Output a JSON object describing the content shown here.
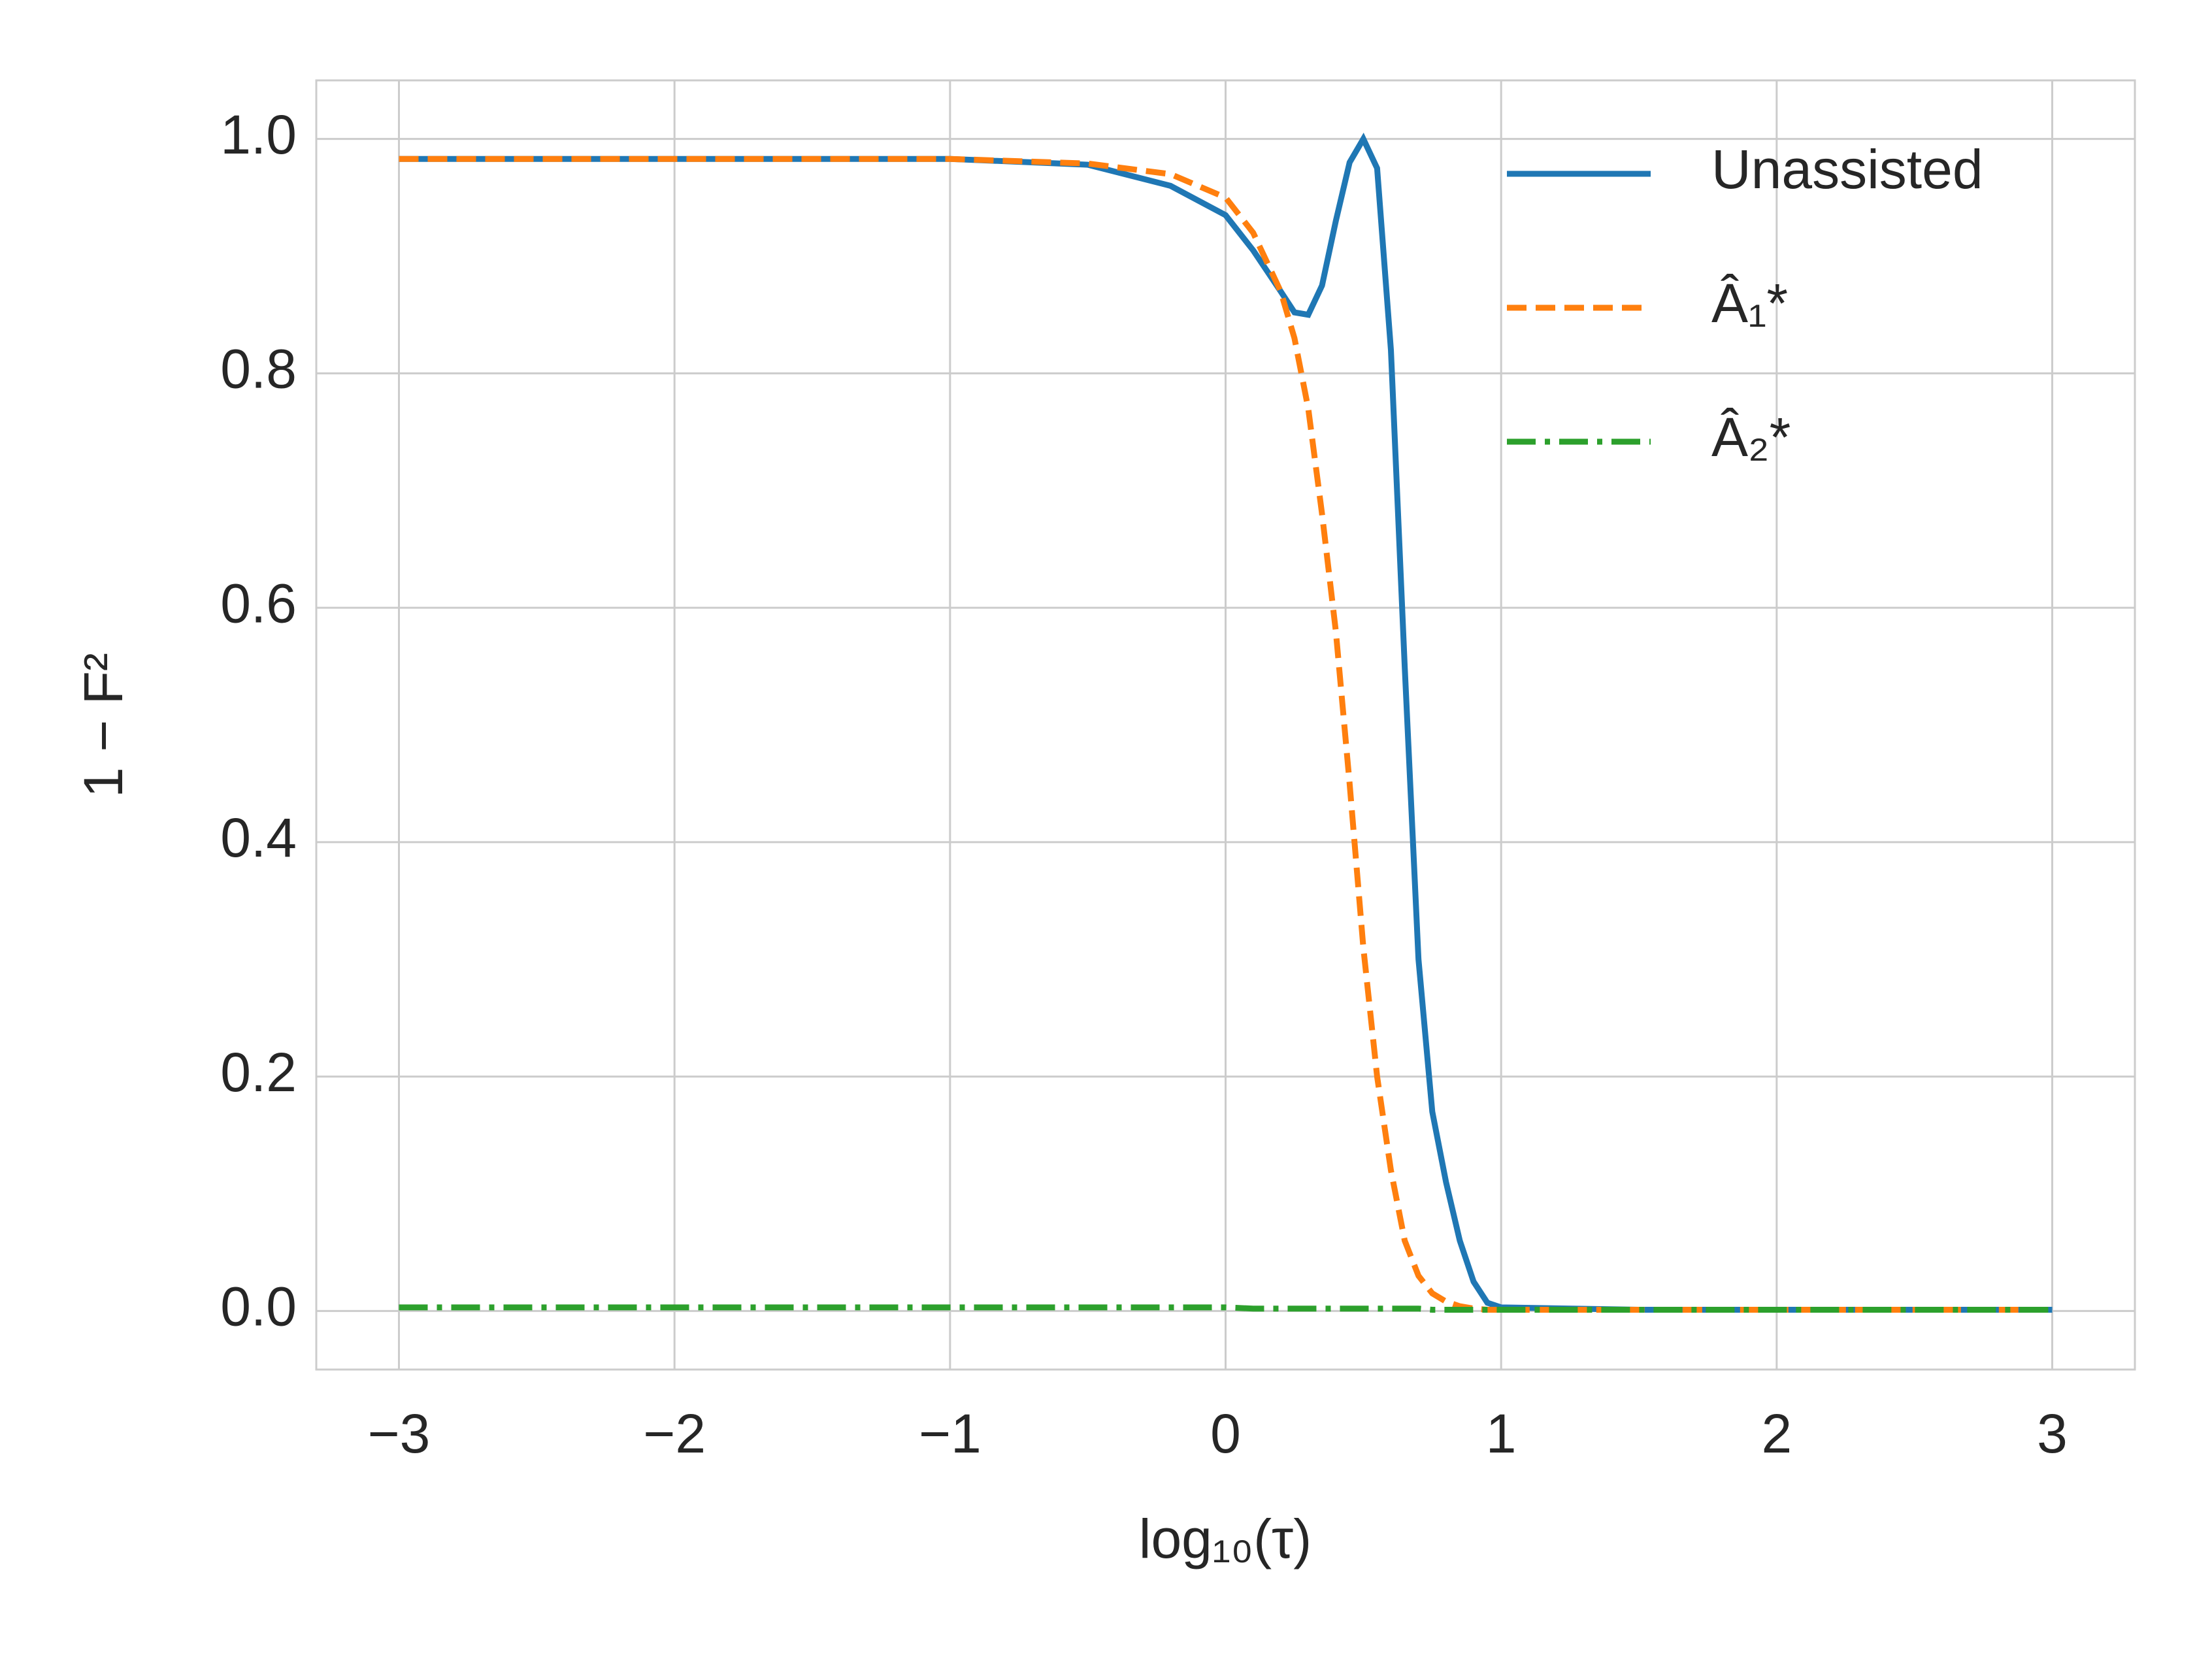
{
  "chart_data": {
    "type": "line",
    "x_label": "log₁₀(τ)",
    "y_label": "1 − F²",
    "x": [
      -3,
      -2,
      -1,
      -0.5,
      -0.2,
      0,
      0.1,
      0.2,
      0.25,
      0.3,
      0.35,
      0.4,
      0.45,
      0.5,
      0.55,
      0.6,
      0.65,
      0.7,
      0.75,
      0.8,
      0.85,
      0.9,
      0.95,
      1.0,
      1.5,
      2,
      2.5,
      3
    ],
    "series": [
      {
        "name": "Unassisted",
        "color": "#1f77b4",
        "linestyle": "solid",
        "values": [
          0.983,
          0.983,
          0.983,
          0.978,
          0.96,
          0.935,
          0.905,
          0.87,
          0.852,
          0.85,
          0.875,
          0.93,
          0.98,
          1.0,
          0.975,
          0.82,
          0.55,
          0.3,
          0.17,
          0.11,
          0.06,
          0.025,
          0.007,
          0.003,
          0.001,
          0.001,
          0.001,
          0.001
        ]
      },
      {
        "name": "Â₁*",
        "color": "#ff7f0e",
        "linestyle": "dashed",
        "values": [
          0.983,
          0.983,
          0.983,
          0.979,
          0.97,
          0.95,
          0.92,
          0.87,
          0.83,
          0.77,
          0.68,
          0.58,
          0.45,
          0.31,
          0.2,
          0.12,
          0.06,
          0.03,
          0.015,
          0.008,
          0.004,
          0.002,
          0.001,
          0.001,
          0.001,
          0.001,
          0.001,
          0.001
        ]
      },
      {
        "name": "Â₂*",
        "color": "#2ca02c",
        "linestyle": "dashdot",
        "values": [
          0.003,
          0.003,
          0.003,
          0.003,
          0.003,
          0.003,
          0.002,
          0.002,
          0.002,
          0.002,
          0.002,
          0.002,
          0.002,
          0.002,
          0.002,
          0.002,
          0.002,
          0.002,
          0.001,
          0.001,
          0.001,
          0.001,
          0.001,
          0.001,
          0.001,
          0.001,
          0.001,
          0.001
        ]
      }
    ],
    "xlim": [
      -3.3,
      3.3
    ],
    "ylim": [
      -0.05,
      1.05
    ],
    "xticks": [
      {
        "value": -3,
        "label": "−3"
      },
      {
        "value": -2,
        "label": "−2"
      },
      {
        "value": -1,
        "label": "−1"
      },
      0,
      1,
      2,
      3
    ],
    "yticks": [
      {
        "value": 0,
        "label": "0.0"
      },
      0.2,
      0.4,
      0.6,
      0.8,
      {
        "value": 1,
        "label": "1.0"
      }
    ],
    "grid": true,
    "legend": "upper right"
  }
}
